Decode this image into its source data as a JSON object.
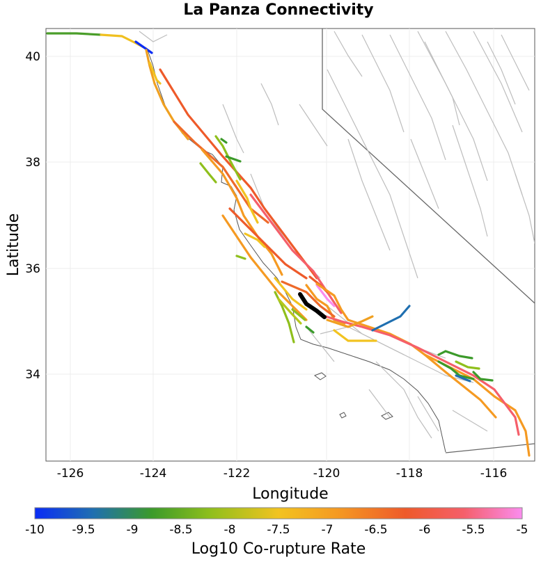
{
  "title": "La Panza Connectivity",
  "map": {
    "xlabel": "Longitude",
    "ylabel": "Latitude",
    "xlim": [
      -126.7,
      -115.0
    ],
    "ylim": [
      32.4,
      40.55
    ],
    "x_ticks": [
      -126,
      -124,
      -122,
      -120,
      -118,
      -116
    ],
    "y_ticks": [
      34,
      36,
      38,
      40
    ],
    "x_tick_labels": [
      "-126",
      "-124",
      "-122",
      "-120",
      "-118",
      "-116"
    ],
    "y_tick_labels": [
      "34",
      "36",
      "38",
      "40"
    ],
    "grid": true
  },
  "colorbar": {
    "label": "Log10 Co-rupture Rate",
    "min": -10,
    "max": -5,
    "tick_labels": [
      "-10",
      "-9.5",
      "-9",
      "-8.5",
      "-8",
      "-7.5",
      "-7",
      "-6.5",
      "-6",
      "-5.5",
      "-5"
    ],
    "stops": [
      "#0a2cf5",
      "#1f6fb0",
      "#3b9a2a",
      "#8fbf1c",
      "#f2c320",
      "#f59a22",
      "#ee5a2a",
      "#f55f6a",
      "#fa8cee"
    ]
  },
  "highlighted_section": {
    "name": "La Panza",
    "color": "#000000"
  }
}
